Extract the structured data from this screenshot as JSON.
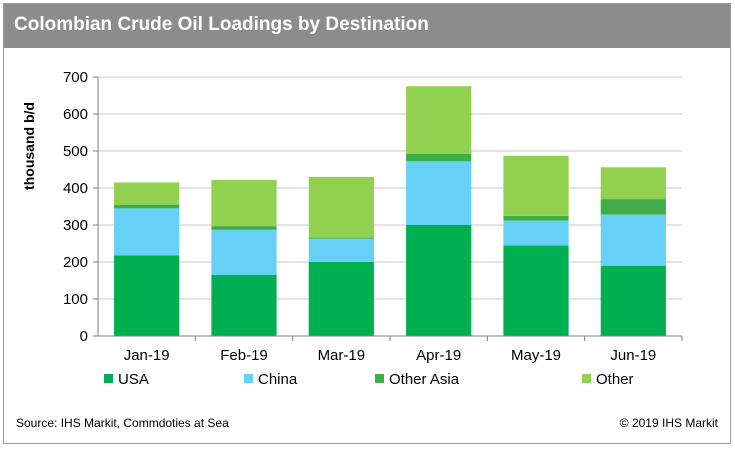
{
  "title": "Colombian Crude Oil Loadings by Destination",
  "footer": {
    "source": "Source: IHS Markit, Commdoties at Sea",
    "copyright": "© 2019 IHS Markit"
  },
  "chart_data": {
    "type": "bar",
    "stacked": true,
    "title": "Colombian Crude Oil Loadings by Destination",
    "xlabel": "",
    "ylabel": "thousand b/d",
    "ylim": [
      0,
      700
    ],
    "yticks": [
      0,
      100,
      200,
      300,
      400,
      500,
      600,
      700
    ],
    "grid": true,
    "legend_position": "bottom",
    "categories": [
      "Jan-19",
      "Feb-19",
      "Mar-19",
      "Apr-19",
      "May-19",
      "Jun-19"
    ],
    "series": [
      {
        "name": "USA",
        "color": "#00b050",
        "values": [
          218,
          165,
          200,
          300,
          245,
          190
        ]
      },
      {
        "name": "China",
        "color": "#66d0f5",
        "values": [
          127,
          122,
          63,
          172,
          67,
          138
        ]
      },
      {
        "name": "Other Asia",
        "color": "#3fae49",
        "values": [
          10,
          10,
          3,
          20,
          13,
          42
        ]
      },
      {
        "name": "Other",
        "color": "#92d050",
        "values": [
          60,
          125,
          164,
          183,
          162,
          86
        ]
      }
    ]
  }
}
